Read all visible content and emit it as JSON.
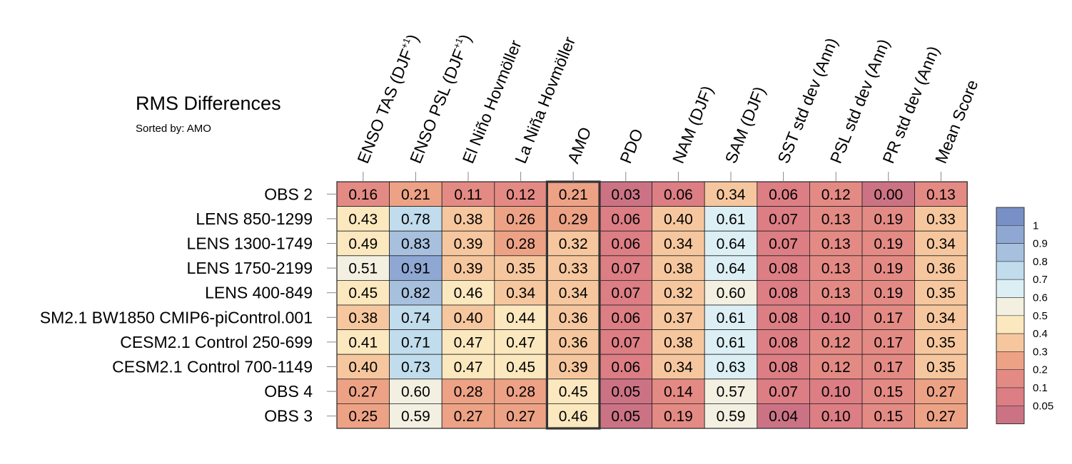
{
  "chart_data": {
    "type": "heatmap",
    "title": "RMS Differences",
    "subtitle": "Sorted by: AMO",
    "highlighted_column": "AMO",
    "columns": [
      {
        "main": "ENSO TAS (DJF",
        "sup": "+1",
        "close": ")"
      },
      {
        "main": "ENSO PSL (DJF",
        "sup": "+1",
        "close": ")"
      },
      {
        "main": "El Niño Hovmöller"
      },
      {
        "main": "La Niña Hovmöller"
      },
      {
        "main": "AMO"
      },
      {
        "main": "PDO"
      },
      {
        "main": "NAM (DJF)"
      },
      {
        "main": "SAM (DJF)"
      },
      {
        "main": "SST std dev (Ann)"
      },
      {
        "main": "PSL std dev (Ann)"
      },
      {
        "main": "PR std dev (Ann)"
      },
      {
        "main": "Mean Score"
      }
    ],
    "rows": [
      "OBS 2",
      "LENS 850-1299",
      "LENS 1300-1749",
      "LENS 1750-2199",
      "LENS 400-849",
      "SM2.1 BW1850 CMIP6-piControl.001",
      "CESM2.1 Control 250-699",
      "CESM2.1 Control 700-1149",
      "OBS 4",
      "OBS 3"
    ],
    "values": [
      [
        "0.16",
        "0.21",
        "0.11",
        "0.12",
        "0.21",
        "0.03",
        "0.06",
        "0.34",
        "0.06",
        "0.12",
        "0.00",
        "0.13"
      ],
      [
        "0.43",
        "0.78",
        "0.38",
        "0.26",
        "0.29",
        "0.06",
        "0.40",
        "0.61",
        "0.07",
        "0.13",
        "0.19",
        "0.33"
      ],
      [
        "0.49",
        "0.83",
        "0.39",
        "0.28",
        "0.32",
        "0.06",
        "0.34",
        "0.64",
        "0.07",
        "0.13",
        "0.19",
        "0.34"
      ],
      [
        "0.51",
        "0.91",
        "0.39",
        "0.35",
        "0.33",
        "0.07",
        "0.38",
        "0.64",
        "0.08",
        "0.13",
        "0.19",
        "0.36"
      ],
      [
        "0.45",
        "0.82",
        "0.46",
        "0.34",
        "0.34",
        "0.07",
        "0.32",
        "0.60",
        "0.08",
        "0.13",
        "0.19",
        "0.35"
      ],
      [
        "0.38",
        "0.74",
        "0.40",
        "0.44",
        "0.36",
        "0.06",
        "0.37",
        "0.61",
        "0.08",
        "0.10",
        "0.17",
        "0.34"
      ],
      [
        "0.41",
        "0.71",
        "0.47",
        "0.47",
        "0.36",
        "0.07",
        "0.38",
        "0.61",
        "0.08",
        "0.12",
        "0.17",
        "0.35"
      ],
      [
        "0.40",
        "0.73",
        "0.47",
        "0.45",
        "0.39",
        "0.06",
        "0.34",
        "0.63",
        "0.08",
        "0.12",
        "0.17",
        "0.35"
      ],
      [
        "0.27",
        "0.60",
        "0.28",
        "0.28",
        "0.45",
        "0.05",
        "0.14",
        "0.57",
        "0.07",
        "0.10",
        "0.15",
        "0.27"
      ],
      [
        "0.25",
        "0.59",
        "0.27",
        "0.27",
        "0.46",
        "0.05",
        "0.19",
        "0.59",
        "0.04",
        "0.10",
        "0.15",
        "0.27"
      ]
    ],
    "colorbar": {
      "labels": [
        "1",
        "0.9",
        "0.8",
        "0.7",
        "0.6",
        "0.5",
        "0.4",
        "0.3",
        "0.2",
        "0.1",
        "0.05"
      ],
      "boundaries": [
        0.05,
        0.1,
        0.2,
        0.3,
        0.4,
        0.5,
        0.6,
        0.7,
        0.8,
        0.9,
        1
      ],
      "colors": [
        "#cb7384",
        "#dc7e84",
        "#e48a84",
        "#eda286",
        "#f6c79e",
        "#fce8be",
        "#f3f0e2",
        "#dceff5",
        "#c1dcec",
        "#a7c0de",
        "#8fa8d3",
        "#7990c6"
      ]
    }
  }
}
